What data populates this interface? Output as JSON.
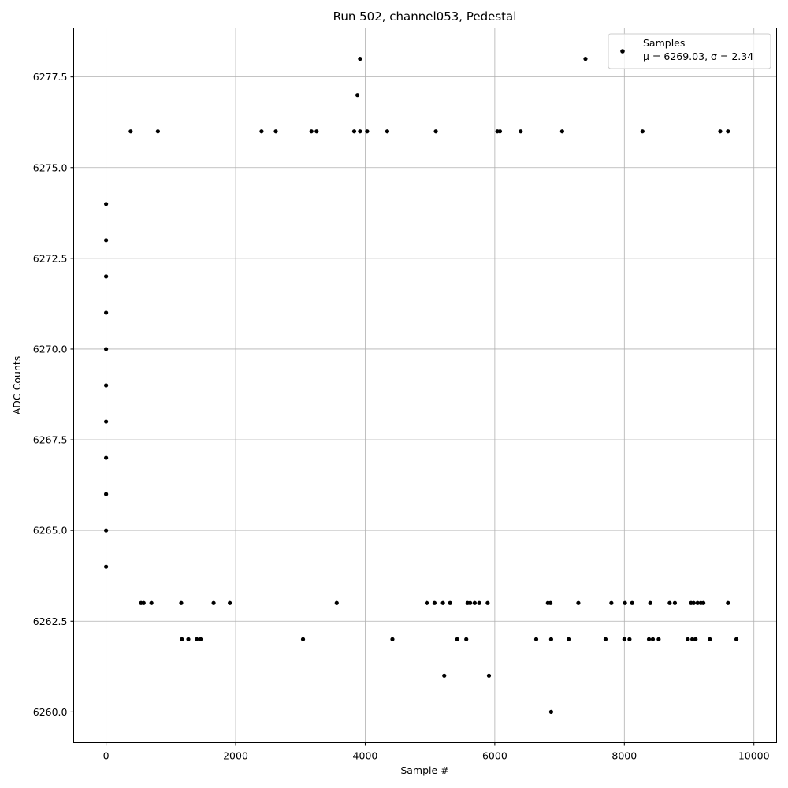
{
  "chart_data": {
    "type": "scatter",
    "title": "Run 502, channel053, Pedestal",
    "xlabel": "Sample #",
    "ylabel": "ADC Counts",
    "xlim": [
      -500,
      10350
    ],
    "ylim": [
      6259.15,
      6278.85
    ],
    "xticks": [
      0,
      2000,
      4000,
      6000,
      8000,
      10000
    ],
    "xtick_labels": [
      "0",
      "2000",
      "4000",
      "6000",
      "8000",
      "10000"
    ],
    "yticks": [
      6260.0,
      6262.5,
      6265.0,
      6267.5,
      6270.0,
      6272.5,
      6275.0,
      6277.5
    ],
    "ytick_labels": [
      "6260.0",
      "6262.5",
      "6265.0",
      "6267.5",
      "6270.0",
      "6272.5",
      "6275.0",
      "6277.5"
    ],
    "grid": true,
    "legend_position": "top-right",
    "marker_color": "#000000",
    "series": [
      {
        "name": "Samples",
        "legend_label": "μ = 6269.03, σ = 2.34",
        "points": [
          [
            0,
            6274
          ],
          [
            0,
            6273
          ],
          [
            0,
            6272
          ],
          [
            0,
            6271
          ],
          [
            0,
            6270
          ],
          [
            0,
            6269
          ],
          [
            0,
            6268
          ],
          [
            0,
            6267
          ],
          [
            0,
            6266
          ],
          [
            0,
            6265
          ],
          [
            0,
            6264
          ],
          [
            380,
            6276
          ],
          [
            800,
            6276
          ],
          [
            2400,
            6276
          ],
          [
            2620,
            6276
          ],
          [
            3170,
            6276
          ],
          [
            3250,
            6276
          ],
          [
            3830,
            6276
          ],
          [
            3920,
            6276
          ],
          [
            4030,
            6276
          ],
          [
            4340,
            6276
          ],
          [
            5090,
            6276
          ],
          [
            6040,
            6276
          ],
          [
            6080,
            6276
          ],
          [
            6400,
            6276
          ],
          [
            7040,
            6276
          ],
          [
            8280,
            6276
          ],
          [
            9480,
            6276
          ],
          [
            9600,
            6276
          ],
          [
            3880,
            6277
          ],
          [
            3920,
            6278
          ],
          [
            7400,
            6278
          ],
          [
            1170,
            6262
          ],
          [
            1270,
            6262
          ],
          [
            1400,
            6262
          ],
          [
            1460,
            6262
          ],
          [
            3040,
            6262
          ],
          [
            4420,
            6262
          ],
          [
            5420,
            6262
          ],
          [
            5560,
            6262
          ],
          [
            6640,
            6262
          ],
          [
            6870,
            6262
          ],
          [
            7140,
            6262
          ],
          [
            7710,
            6262
          ],
          [
            8000,
            6262
          ],
          [
            8080,
            6262
          ],
          [
            8380,
            6262
          ],
          [
            8440,
            6262
          ],
          [
            8530,
            6262
          ],
          [
            8980,
            6262
          ],
          [
            9050,
            6262
          ],
          [
            9100,
            6262
          ],
          [
            9320,
            6262
          ],
          [
            9730,
            6262
          ],
          [
            540,
            6263
          ],
          [
            580,
            6263
          ],
          [
            700,
            6263
          ],
          [
            1160,
            6263
          ],
          [
            1660,
            6263
          ],
          [
            1910,
            6263
          ],
          [
            3560,
            6263
          ],
          [
            4950,
            6263
          ],
          [
            5070,
            6263
          ],
          [
            5200,
            6263
          ],
          [
            5310,
            6263
          ],
          [
            5580,
            6263
          ],
          [
            5620,
            6263
          ],
          [
            5690,
            6263
          ],
          [
            5760,
            6263
          ],
          [
            5890,
            6263
          ],
          [
            6820,
            6263
          ],
          [
            6860,
            6263
          ],
          [
            7290,
            6263
          ],
          [
            7800,
            6263
          ],
          [
            8010,
            6263
          ],
          [
            8120,
            6263
          ],
          [
            8400,
            6263
          ],
          [
            8700,
            6263
          ],
          [
            8780,
            6263
          ],
          [
            9030,
            6263
          ],
          [
            9070,
            6263
          ],
          [
            9130,
            6263
          ],
          [
            9180,
            6263
          ],
          [
            9220,
            6263
          ],
          [
            9600,
            6263
          ],
          [
            5220,
            6261
          ],
          [
            5910,
            6261
          ],
          [
            6870,
            6260
          ]
        ]
      }
    ]
  }
}
